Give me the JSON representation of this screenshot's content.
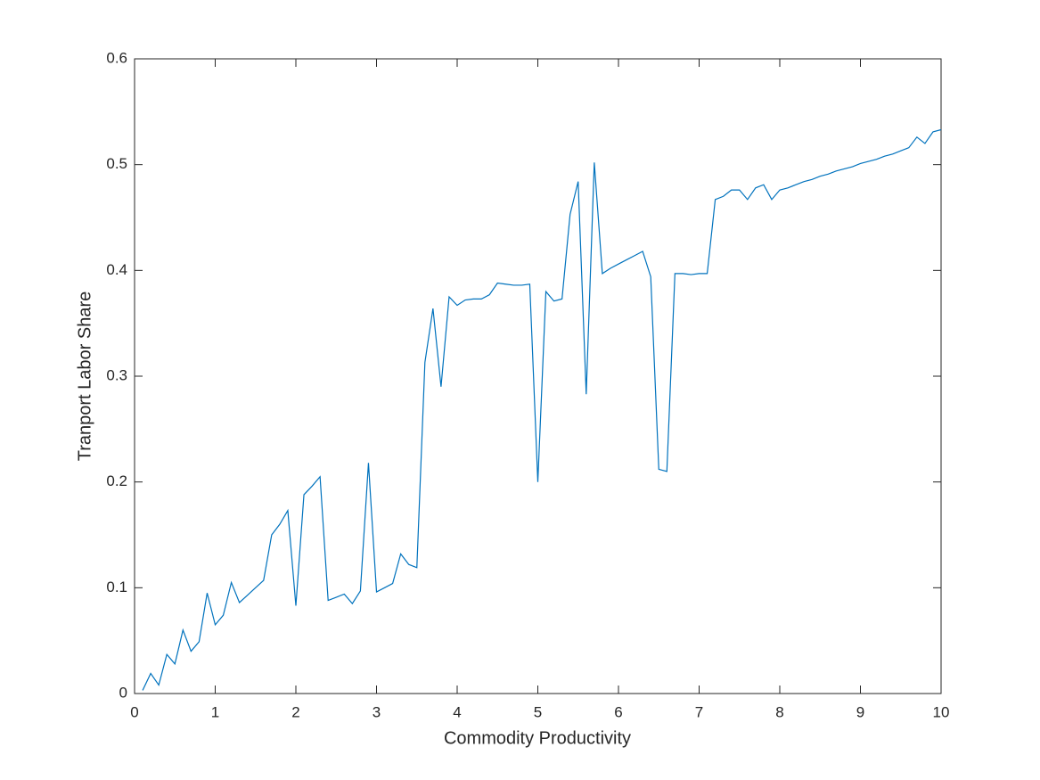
{
  "chart_data": {
    "type": "line",
    "xlabel": "Commodity Productivity",
    "ylabel": "Tranport Labor Share",
    "x": [
      0.1,
      0.2,
      0.3,
      0.4,
      0.5,
      0.6,
      0.7,
      0.8,
      0.9,
      1.0,
      1.1,
      1.2,
      1.3,
      1.4,
      1.5,
      1.6,
      1.7,
      1.8,
      1.9,
      2.0,
      2.1,
      2.2,
      2.3,
      2.4,
      2.5,
      2.6,
      2.7,
      2.8,
      2.9,
      3.0,
      3.1,
      3.2,
      3.3,
      3.4,
      3.5,
      3.6,
      3.7,
      3.8,
      3.9,
      4.0,
      4.1,
      4.2,
      4.3,
      4.4,
      4.5,
      4.6,
      4.7,
      4.8,
      4.9,
      5.0,
      5.1,
      5.2,
      5.3,
      5.4,
      5.5,
      5.6,
      5.7,
      5.8,
      5.9,
      6.0,
      6.1,
      6.2,
      6.3,
      6.4,
      6.5,
      6.6,
      6.7,
      6.8,
      6.9,
      7.0,
      7.1,
      7.2,
      7.3,
      7.4,
      7.5,
      7.6,
      7.7,
      7.8,
      7.9,
      8.0,
      8.1,
      8.2,
      8.3,
      8.4,
      8.5,
      8.6,
      8.7,
      8.8,
      8.9,
      9.0,
      9.1,
      9.2,
      9.3,
      9.4,
      9.5,
      9.6,
      9.7,
      9.8,
      9.9,
      10.0
    ],
    "series": [
      {
        "color": "#0072bd",
        "values": [
          0.003,
          0.019,
          0.008,
          0.037,
          0.028,
          0.06,
          0.04,
          0.049,
          0.095,
          0.065,
          0.074,
          0.105,
          0.086,
          0.093,
          0.1,
          0.107,
          0.15,
          0.16,
          0.173,
          0.083,
          0.188,
          0.196,
          0.205,
          0.088,
          0.091,
          0.094,
          0.085,
          0.097,
          0.218,
          0.096,
          0.1,
          0.104,
          0.132,
          0.122,
          0.119,
          0.313,
          0.364,
          0.29,
          0.375,
          0.367,
          0.372,
          0.373,
          0.373,
          0.377,
          0.388,
          0.387,
          0.386,
          0.386,
          0.387,
          0.2,
          0.38,
          0.371,
          0.373,
          0.453,
          0.484,
          0.283,
          0.502,
          0.397,
          0.402,
          0.406,
          0.41,
          0.414,
          0.418,
          0.394,
          0.212,
          0.21,
          0.397,
          0.397,
          0.396,
          0.397,
          0.397,
          0.467,
          0.47,
          0.476,
          0.476,
          0.467,
          0.478,
          0.481,
          0.467,
          0.476,
          0.478,
          0.481,
          0.484,
          0.486,
          0.489,
          0.491,
          0.494,
          0.496,
          0.498,
          0.501,
          0.503,
          0.505,
          0.508,
          0.51,
          0.513,
          0.516,
          0.526,
          0.52,
          0.531,
          0.533
        ]
      }
    ],
    "xlim": [
      0,
      10
    ],
    "xticks": [
      0,
      1,
      2,
      3,
      4,
      5,
      6,
      7,
      8,
      9,
      10
    ],
    "ylim": [
      0,
      0.6
    ],
    "yticks": [
      0,
      0.1,
      0.2,
      0.3,
      0.4,
      0.5,
      0.6
    ],
    "grid": false
  }
}
